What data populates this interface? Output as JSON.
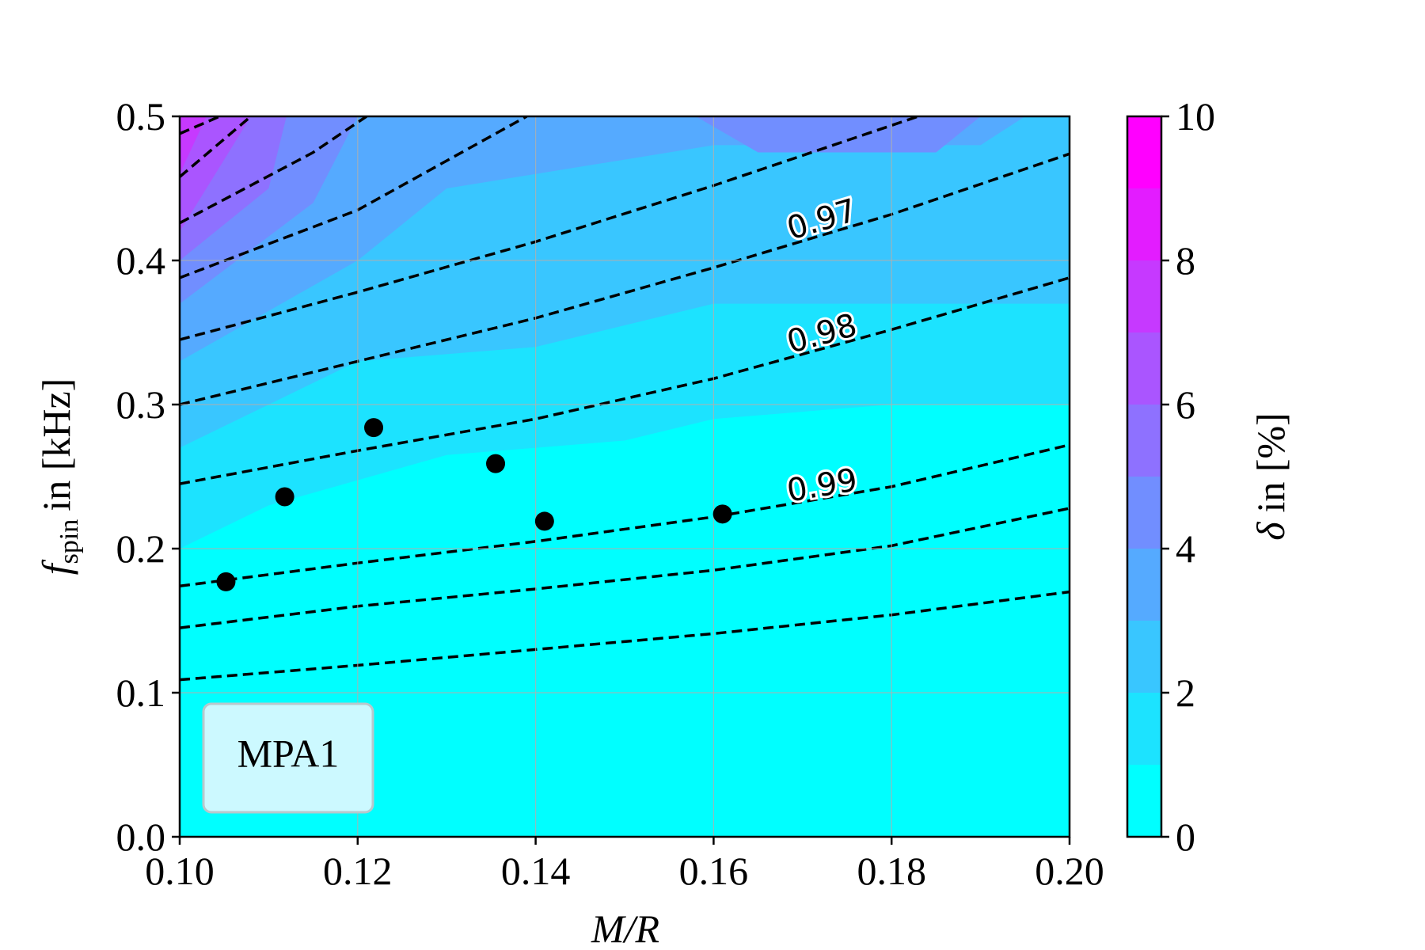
{
  "chart_data": {
    "type": "contour",
    "xlabel": "M/R",
    "ylabel": {
      "symbol": "f",
      "subscript": "spin",
      "text": "in [kHz]"
    },
    "xlim": [
      0.1,
      0.2
    ],
    "ylim": [
      0.0,
      0.5
    ],
    "xticks": [
      {
        "value": 0.1,
        "label": "0.10"
      },
      0.12,
      0.14,
      0.16,
      0.18,
      {
        "value": 0.2,
        "label": "0.20"
      }
    ],
    "yticks": [
      {
        "value": 0.0,
        "label": "0.0"
      },
      0.1,
      0.2,
      0.3,
      0.4,
      0.5
    ],
    "grid": true,
    "cmap": "cool",
    "colorbar": {
      "label": {
        "symbol": "δ",
        "text": "in [%]"
      },
      "lim": [
        0,
        10
      ],
      "ticks": [
        0,
        2,
        4,
        6,
        8,
        10
      ],
      "levels": [
        0,
        1,
        2,
        3,
        4,
        5,
        6,
        7,
        8,
        9,
        10
      ]
    },
    "regions": [
      {
        "level": 1,
        "x": [
          0.1,
          0.11,
          0.13,
          0.15,
          0.16,
          0.18,
          0.2,
          0.2,
          0.1
        ],
        "y": [
          0.2,
          0.23,
          0.265,
          0.275,
          0.29,
          0.3,
          0.3,
          0.5,
          0.5
        ]
      },
      {
        "level": 2,
        "x": [
          0.1,
          0.12,
          0.14,
          0.16,
          0.18,
          0.2,
          0.2,
          0.1
        ],
        "y": [
          0.27,
          0.33,
          0.34,
          0.37,
          0.37,
          0.37,
          0.5,
          0.5
        ]
      },
      {
        "level": 3,
        "x": [
          0.1,
          0.12,
          0.13,
          0.15,
          0.16,
          0.19,
          0.195,
          0.1
        ],
        "y": [
          0.33,
          0.4,
          0.45,
          0.47,
          0.48,
          0.48,
          0.5,
          0.5
        ]
      },
      {
        "level": 4,
        "x": [
          0.1,
          0.115,
          0.12,
          0.1
        ],
        "y": [
          0.37,
          0.44,
          0.5,
          0.5
        ]
      },
      {
        "level": 4,
        "x": [
          0.158,
          0.165,
          0.185,
          0.19
        ],
        "y": [
          0.5,
          0.475,
          0.475,
          0.5
        ]
      },
      {
        "level": 5,
        "x": [
          0.1,
          0.11,
          0.112,
          0.1
        ],
        "y": [
          0.4,
          0.45,
          0.5,
          0.5
        ]
      },
      {
        "level": 6,
        "x": [
          0.1,
          0.105,
          0.108,
          0.1
        ],
        "y": [
          0.42,
          0.47,
          0.5,
          0.5
        ]
      },
      {
        "level": 7,
        "x": [
          0.1,
          0.103,
          0.1
        ],
        "y": [
          0.46,
          0.5,
          0.5
        ]
      }
    ],
    "contours": [
      {
        "x": [
          0.1,
          0.12,
          0.14,
          0.16,
          0.18,
          0.2
        ],
        "y": [
          0.109,
          0.119,
          0.13,
          0.141,
          0.154,
          0.17
        ]
      },
      {
        "x": [
          0.1,
          0.12,
          0.14,
          0.16,
          0.18,
          0.2
        ],
        "y": [
          0.145,
          0.16,
          0.172,
          0.185,
          0.202,
          0.228
        ]
      },
      {
        "level": 0.99,
        "x": [
          0.1,
          0.12,
          0.14,
          0.16,
          0.18,
          0.2
        ],
        "y": [
          0.174,
          0.19,
          0.205,
          0.222,
          0.243,
          0.272
        ]
      },
      {
        "level": 0.98,
        "x": [
          0.1,
          0.12,
          0.14,
          0.16,
          0.18,
          0.2
        ],
        "y": [
          0.245,
          0.268,
          0.29,
          0.318,
          0.352,
          0.388
        ]
      },
      {
        "level": 0.97,
        "x": [
          0.1,
          0.12,
          0.14,
          0.16,
          0.18,
          0.2
        ],
        "y": [
          0.3,
          0.33,
          0.36,
          0.395,
          0.432,
          0.474
        ]
      },
      {
        "x": [
          0.1,
          0.12,
          0.14,
          0.16,
          0.183
        ],
        "y": [
          0.345,
          0.378,
          0.413,
          0.452,
          0.5
        ]
      },
      {
        "x": [
          0.1,
          0.12,
          0.139
        ],
        "y": [
          0.388,
          0.435,
          0.5
        ]
      },
      {
        "x": [
          0.1,
          0.115,
          0.121
        ],
        "y": [
          0.426,
          0.475,
          0.5
        ]
      },
      {
        "x": [
          0.1,
          0.108
        ],
        "y": [
          0.458,
          0.5
        ]
      },
      {
        "x": [
          0.1,
          0.1045
        ],
        "y": [
          0.488,
          0.5
        ]
      }
    ],
    "points": {
      "color": "#000000",
      "x": [
        0.1052,
        0.1118,
        0.1218,
        0.1355,
        0.141,
        0.161
      ],
      "y": [
        0.177,
        0.236,
        0.284,
        0.259,
        0.219,
        0.224
      ]
    },
    "annotation": "MPA1"
  }
}
